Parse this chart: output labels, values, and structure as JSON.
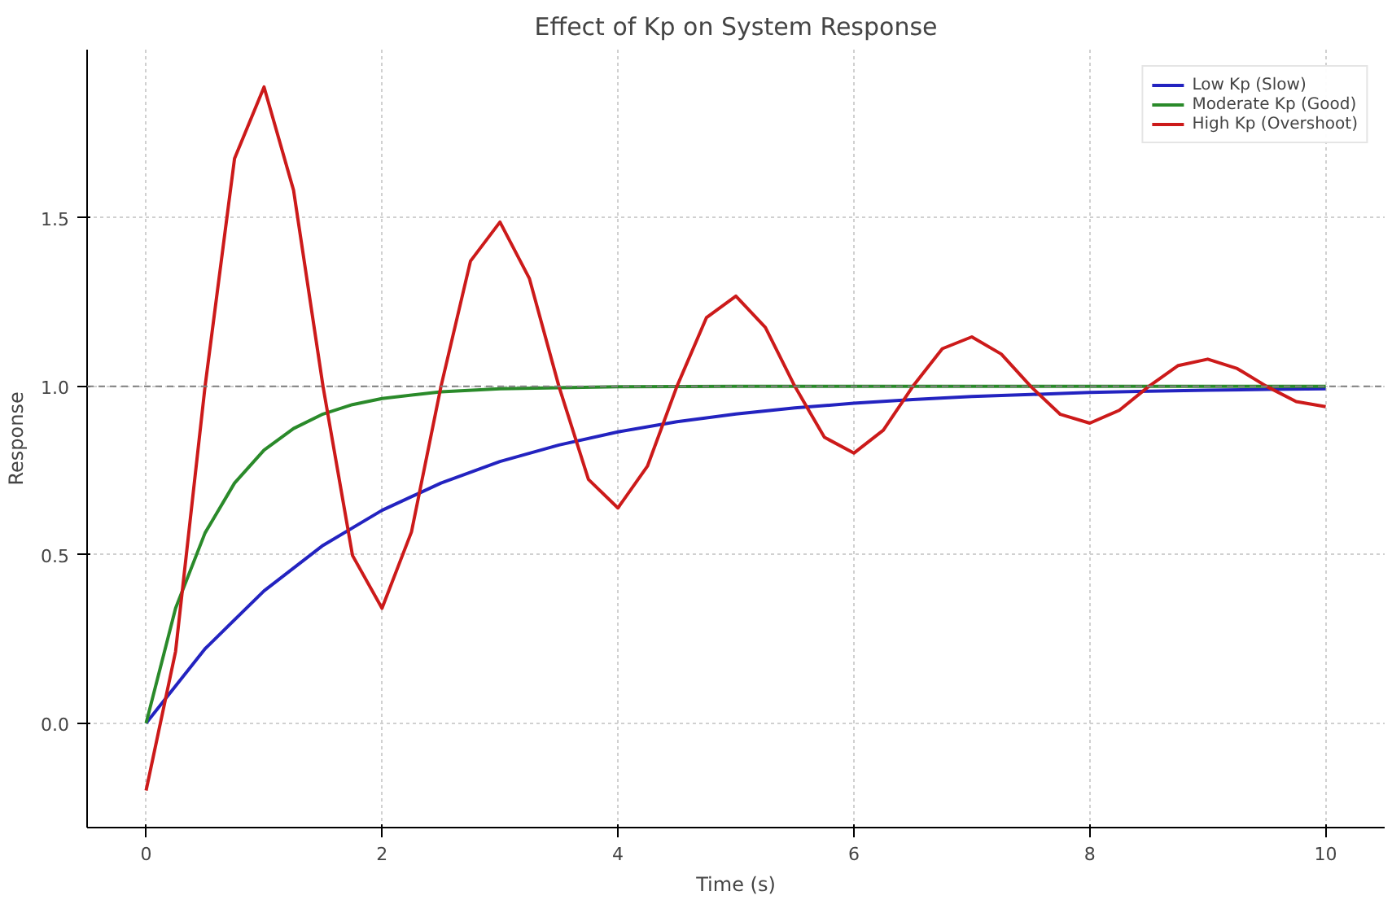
{
  "chart_data": {
    "type": "line",
    "title": "Effect of Kp on System Response",
    "xlabel": "Time (s)",
    "ylabel": "Response",
    "xlim": [
      -0.5,
      10.5
    ],
    "ylim": [
      -0.31,
      2.0
    ],
    "xticks": [
      0,
      2,
      4,
      6,
      8,
      10
    ],
    "yticks": [
      {
        "value": 0,
        "label": "0.0"
      },
      {
        "value": 0.5,
        "label": "0.5"
      },
      {
        "value": 1,
        "label": "1.0"
      },
      {
        "value": 1.5,
        "label": "1.5"
      }
    ],
    "grid": true,
    "legend": "top right",
    "line_style": "solid",
    "ref_lines": [
      {
        "axis": "y",
        "value": 1,
        "color": "#808080",
        "line_style": "dashed"
      }
    ],
    "series": [
      {
        "name": "Low Kp (Slow)",
        "color": "#2323c0",
        "x": [
          0,
          0.5,
          1,
          1.5,
          2,
          2.5,
          3,
          3.5,
          4,
          4.5,
          5,
          5.5,
          6,
          6.5,
          7,
          7.5,
          8,
          8.5,
          9,
          9.5,
          10
        ],
        "values": [
          0,
          0.221,
          0.393,
          0.528,
          0.632,
          0.713,
          0.777,
          0.826,
          0.865,
          0.895,
          0.918,
          0.936,
          0.95,
          0.961,
          0.97,
          0.976,
          0.982,
          0.986,
          0.989,
          0.991,
          0.993
        ]
      },
      {
        "name": "Moderate Kp (Good)",
        "color": "#2a8a2a",
        "x": [
          0,
          0.25,
          0.5,
          0.75,
          1,
          1.25,
          1.5,
          1.75,
          2,
          2.5,
          3,
          4,
          5,
          6,
          7,
          8,
          9,
          10
        ],
        "values": [
          0,
          0.341,
          0.565,
          0.713,
          0.811,
          0.875,
          0.918,
          0.946,
          0.964,
          0.984,
          0.993,
          0.999,
          1.0,
          1.0,
          1.0,
          1.0,
          1.0,
          1.0
        ]
      },
      {
        "name": "High Kp (Overshoot)",
        "color": "#cc1a1a",
        "x": [
          0,
          0.25,
          0.5,
          0.75,
          1,
          1.25,
          1.5,
          1.75,
          2,
          2.25,
          2.5,
          2.75,
          3,
          3.25,
          3.5,
          3.75,
          4,
          4.25,
          4.5,
          4.75,
          5,
          5.25,
          5.5,
          5.75,
          6,
          6.25,
          6.5,
          6.75,
          7,
          7.25,
          7.5,
          7.75,
          8,
          8.25,
          8.5,
          8.75,
          9,
          9.25,
          9.5,
          9.75,
          10
        ],
        "values": [
          -0.2,
          0.213,
          1.0,
          1.677,
          1.889,
          1.583,
          1.0,
          0.498,
          0.341,
          0.568,
          1.0,
          1.372,
          1.488,
          1.32,
          1.0,
          0.724,
          0.639,
          0.763,
          1.0,
          1.204,
          1.268,
          1.175,
          1.0,
          0.849,
          0.802,
          0.87,
          1.0,
          1.112,
          1.147,
          1.096,
          1.0,
          0.917,
          0.891,
          0.929,
          1.0,
          1.062,
          1.081,
          1.053,
          1.0,
          0.955,
          0.94
        ]
      }
    ]
  }
}
